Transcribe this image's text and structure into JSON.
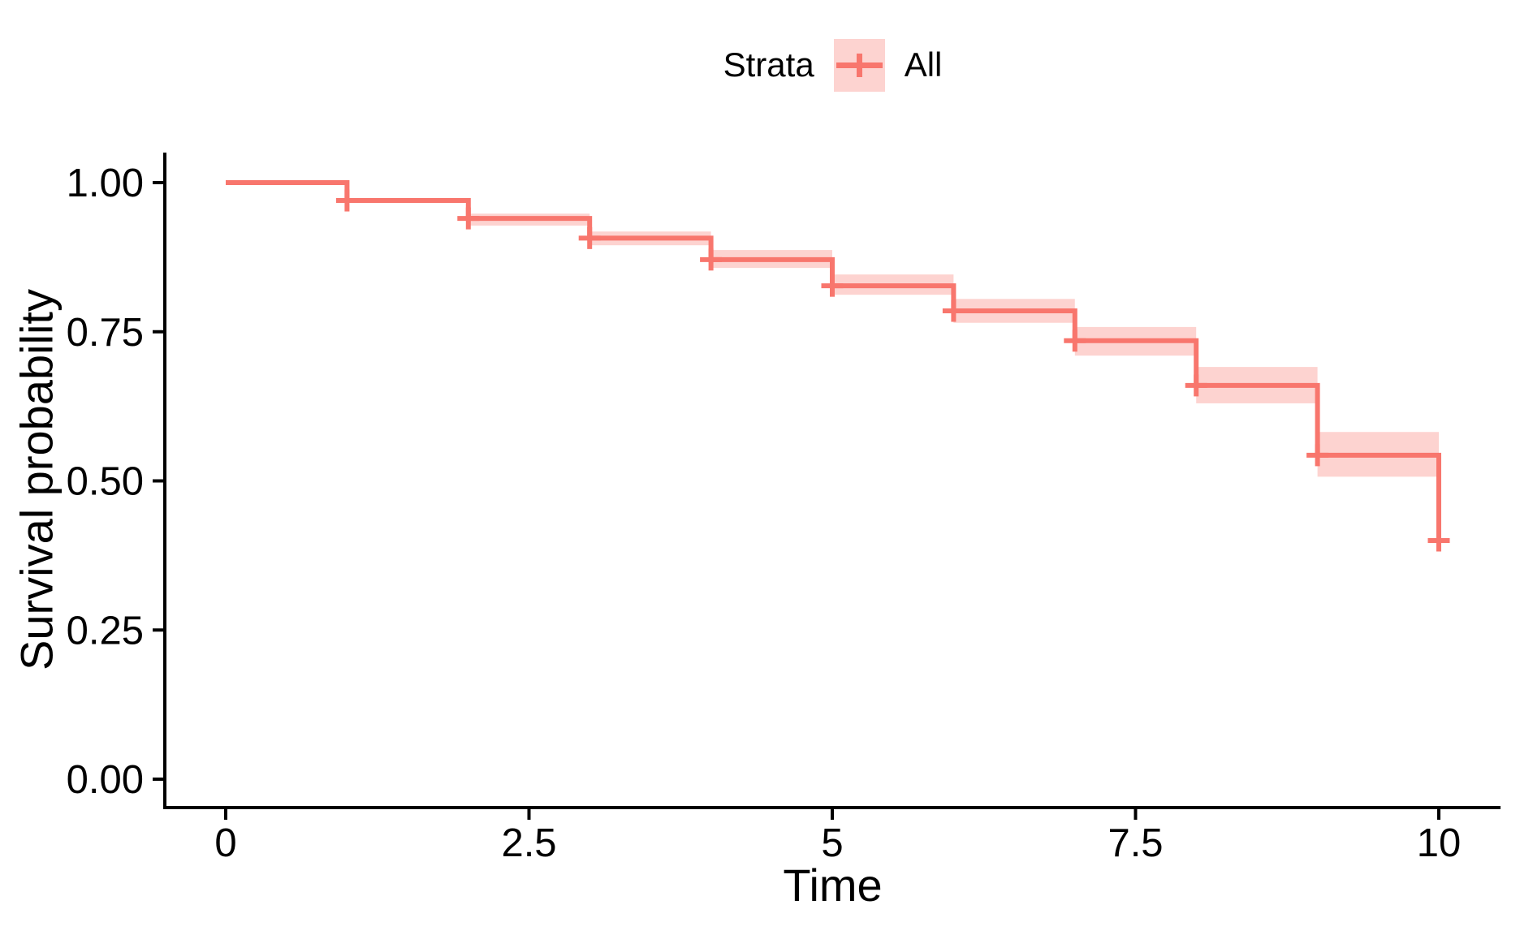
{
  "chart_data": {
    "type": "line",
    "subtype": "kaplan-meier-step-curve",
    "title": "",
    "xlabel": "Time",
    "ylabel": "Survival probability",
    "grid": false,
    "legend": {
      "title": "Strata",
      "position": "top-center",
      "entries": [
        {
          "label": "All",
          "color": "#F8766D"
        }
      ]
    },
    "x_ticks": {
      "values": [
        0,
        2.5,
        5,
        7.5,
        10
      ],
      "labels": [
        "0",
        "2.5",
        "5",
        "7.5",
        "10"
      ]
    },
    "y_ticks": {
      "values": [
        0,
        0.25,
        0.5,
        0.75,
        1
      ],
      "labels": [
        "0.00",
        "0.25",
        "0.50",
        "0.75",
        "1.00"
      ]
    },
    "xlim": [
      -0.5,
      10.5
    ],
    "ylim": [
      -0.05,
      1.05
    ],
    "series": [
      {
        "name": "All",
        "times": [
          0,
          1,
          2,
          3,
          4,
          5,
          6,
          7,
          8,
          9,
          10
        ],
        "surv": [
          1.0,
          0.97,
          0.94,
          0.907,
          0.871,
          0.827,
          0.785,
          0.735,
          0.66,
          0.543,
          0.4
        ],
        "lower": [
          1.0,
          0.97,
          0.928,
          0.895,
          0.857,
          0.812,
          0.765,
          0.71,
          0.63,
          0.507,
          0.4
        ],
        "upper": [
          1.0,
          0.97,
          0.948,
          0.918,
          0.887,
          0.846,
          0.805,
          0.758,
          0.691,
          0.582,
          0.4
        ],
        "censor_times": [
          1,
          2,
          3,
          4,
          5,
          6,
          7,
          8,
          9,
          10
        ]
      }
    ],
    "colors": {
      "line": "#F8766D",
      "band_fill": "rgba(248,118,109,0.32)",
      "axis": "#000000",
      "text": "#000000",
      "background": "#FFFFFF"
    }
  }
}
